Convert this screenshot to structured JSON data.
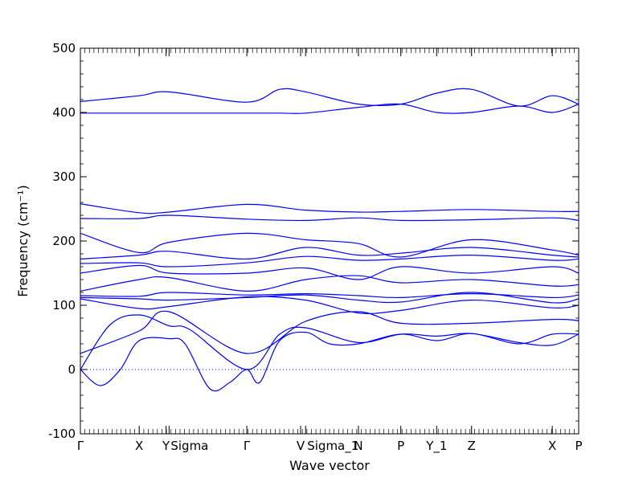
{
  "chart_data": {
    "type": "line",
    "title": "",
    "xlabel": "Wave vector",
    "ylabel": "Frequency (cm⁻¹)",
    "ylim": [
      -100,
      500
    ],
    "yticks": [
      -100,
      0,
      100,
      200,
      300,
      400,
      500
    ],
    "xlim": [
      0,
      1
    ],
    "kpoints": [
      {
        "label": "Γ",
        "pos": 0.0
      },
      {
        "label": "X",
        "pos": 0.118
      },
      {
        "label": "Y",
        "pos": 0.172
      },
      {
        "label": "Sigma",
        "pos": 0.178
      },
      {
        "label": "Γ",
        "pos": 0.334
      },
      {
        "label": "V",
        "pos": 0.442
      },
      {
        "label": "Sigma_1",
        "pos": 0.452
      },
      {
        "label": "N",
        "pos": 0.558
      },
      {
        "label": "P",
        "pos": 0.643
      },
      {
        "label": "Y_1",
        "pos": 0.715
      },
      {
        "label": "Z",
        "pos": 0.785
      },
      {
        "label": "X",
        "pos": 0.947
      },
      {
        "label": "P",
        "pos": 1.0
      }
    ],
    "zero_line": 0,
    "series": [
      {
        "x": [
          0,
          0.118,
          0.178,
          0.334,
          0.4,
          0.452,
          0.558,
          0.643,
          0.715,
          0.785,
          0.88,
          0.947,
          1.0
        ],
        "values": [
          399,
          399,
          399,
          399,
          399,
          399,
          408,
          413,
          400,
          400,
          410,
          400,
          413
        ]
      },
      {
        "x": [
          0,
          0.118,
          0.178,
          0.334,
          0.4,
          0.452,
          0.558,
          0.643,
          0.715,
          0.785,
          0.88,
          0.947,
          1.0
        ],
        "values": [
          417,
          426,
          432,
          416,
          436,
          432,
          413,
          413,
          430,
          436,
          410,
          426,
          413
        ]
      },
      {
        "x": [
          0,
          0.118,
          0.178,
          0.334,
          0.452,
          0.558,
          0.643,
          0.785,
          0.947,
          1.0
        ],
        "values": [
          258,
          244,
          245,
          257,
          248,
          245,
          246,
          249,
          246,
          246
        ]
      },
      {
        "x": [
          0,
          0.118,
          0.178,
          0.334,
          0.452,
          0.558,
          0.643,
          0.785,
          0.947,
          1.0
        ],
        "values": [
          235,
          235,
          240,
          234,
          232,
          236,
          232,
          233,
          236,
          232
        ]
      },
      {
        "x": [
          0,
          0.118,
          0.178,
          0.334,
          0.452,
          0.558,
          0.643,
          0.785,
          0.947,
          1.0
        ],
        "values": [
          212,
          182,
          198,
          212,
          202,
          196,
          175,
          202,
          186,
          178
        ]
      },
      {
        "x": [
          0,
          0.118,
          0.178,
          0.334,
          0.452,
          0.558,
          0.643,
          0.785,
          0.947,
          1.0
        ],
        "values": [
          172,
          178,
          184,
          172,
          190,
          178,
          181,
          190,
          178,
          175
        ]
      },
      {
        "x": [
          0,
          0.118,
          0.178,
          0.334,
          0.452,
          0.558,
          0.643,
          0.785,
          0.947,
          1.0
        ],
        "values": [
          165,
          166,
          160,
          166,
          176,
          170,
          172,
          178,
          170,
          172
        ]
      },
      {
        "x": [
          0,
          0.118,
          0.178,
          0.334,
          0.452,
          0.558,
          0.643,
          0.785,
          0.947,
          1.0
        ],
        "values": [
          150,
          162,
          150,
          150,
          158,
          140,
          160,
          150,
          160,
          150
        ]
      },
      {
        "x": [
          0,
          0.118,
          0.178,
          0.334,
          0.452,
          0.558,
          0.643,
          0.785,
          0.947,
          1.0
        ],
        "values": [
          122,
          140,
          143,
          122,
          140,
          146,
          135,
          140,
          130,
          132
        ]
      },
      {
        "x": [
          0,
          0.118,
          0.178,
          0.334,
          0.452,
          0.558,
          0.643,
          0.785,
          0.947,
          1.0
        ],
        "values": [
          115,
          114,
          120,
          116,
          118,
          115,
          112,
          118,
          112,
          116
        ]
      },
      {
        "x": [
          0,
          0.118,
          0.178,
          0.334,
          0.452,
          0.558,
          0.643,
          0.785,
          0.947,
          1.0
        ],
        "values": [
          112,
          110,
          108,
          112,
          116,
          108,
          105,
          120,
          104,
          110
        ]
      },
      {
        "x": [
          0,
          0.118,
          0.178,
          0.334,
          0.452,
          0.558,
          0.643,
          0.785,
          0.947,
          1.0
        ],
        "values": [
          110,
          95,
          98,
          113,
          108,
          88,
          92,
          108,
          96,
          100
        ]
      },
      {
        "x": [
          0,
          0.118,
          0.178,
          0.334,
          0.452,
          0.558,
          0.643,
          0.785,
          0.947,
          1.0
        ],
        "values": [
          25,
          60,
          90,
          25,
          75,
          90,
          72,
          72,
          78,
          76
        ]
      },
      {
        "x": [
          0,
          0.06,
          0.118,
          0.178,
          0.22,
          0.334,
          0.4,
          0.452,
          0.558,
          0.643,
          0.715,
          0.785,
          0.88,
          0.947,
          1.0
        ],
        "values": [
          0,
          70,
          85,
          68,
          62,
          0,
          55,
          65,
          42,
          55,
          52,
          56,
          42,
          38,
          55
        ]
      },
      {
        "x": [
          0,
          0.04,
          0.08,
          0.118,
          0.178,
          0.21,
          0.26,
          0.3,
          0.334,
          0.36,
          0.4,
          0.452,
          0.5,
          0.558,
          0.643,
          0.715,
          0.785,
          0.88,
          0.947,
          1.0
        ],
        "values": [
          0,
          -25,
          0,
          45,
          48,
          40,
          -30,
          -20,
          0,
          -20,
          45,
          58,
          40,
          40,
          55,
          45,
          56,
          40,
          55,
          55
        ]
      }
    ]
  }
}
